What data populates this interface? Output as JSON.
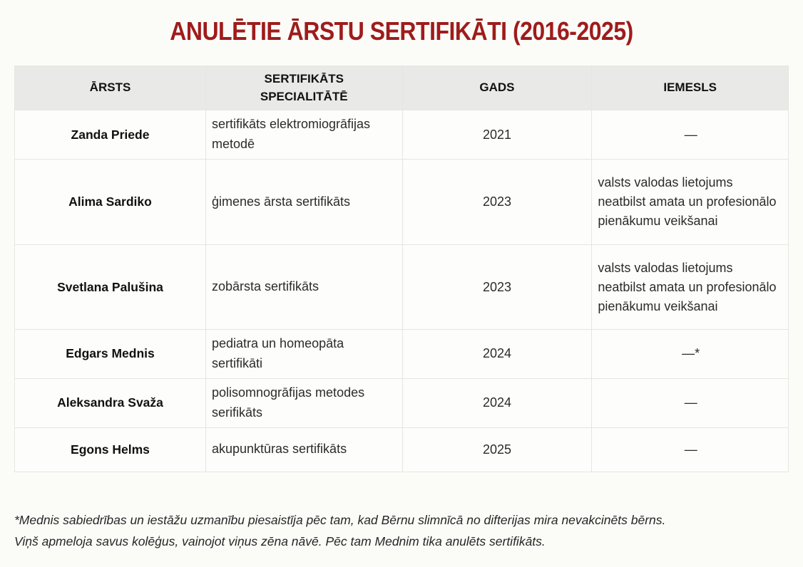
{
  "colors": {
    "title_red": "#9e1c1c",
    "header_bg": "#e9e9e7",
    "page_bg": "#fbfcf8",
    "cell_bg": "#fdfdfb",
    "border": "#e6e5e1",
    "text": "#2b2b2b"
  },
  "chart_data": {
    "type": "table",
    "title": "ANULĒTIE ĀRSTU SERTIFIKĀTI (2016-2025)",
    "columns": [
      "ĀRSTS",
      "SERTIFIKĀTS SPECIALITĀTĒ",
      "GADS",
      "IEMESLS"
    ],
    "rows": [
      [
        "Zanda Priede",
        "sertifikāts elektromiogrāfijas metodē",
        "2021",
        "—"
      ],
      [
        "Alima Sardiko",
        "ģimenes ārsta sertifikāts",
        "2023",
        "valsts valodas lietojums neatbilst amata un profesionālo pienākumu veikšanai"
      ],
      [
        "Svetlana Palušina",
        "zobārsta sertifikāts",
        "2023",
        "valsts valodas lietojums neatbilst amata un profesionālo pienākumu veikšanai"
      ],
      [
        "Edgars Mednis",
        "pediatra un homeopāta sertifikāti",
        "2024",
        "—*"
      ],
      [
        "Aleksandra Svaža",
        "polisomnogrāfijas metodes serifikāts",
        "2024",
        "—"
      ],
      [
        "Egons Helms",
        "akupunktūras sertifikāts",
        "2025",
        "—"
      ]
    ],
    "footnote_lines": [
      "*Mednis sabiedrības un iestāžu uzmanību piesaistīja pēc tam, kad Bērnu slimnīcā no difterijas mira nevakcinēts bērns.",
      "Viņš apmeloja savus kolēģus, vainojot viņus zēna nāvē. Pēc tam Mednim tika anulēts sertifikāts."
    ]
  }
}
